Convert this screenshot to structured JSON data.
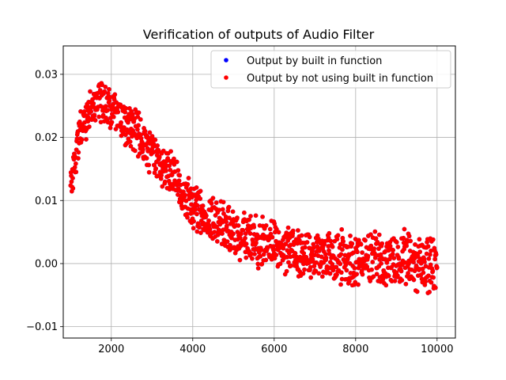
{
  "chart_data": {
    "type": "scatter",
    "title": "Verification of outputs of Audio Filter",
    "xlabel": "",
    "ylabel": "",
    "xlim": [
      820,
      10450
    ],
    "ylim": [
      -0.0118,
      0.0345
    ],
    "xticks": [
      2000,
      4000,
      6000,
      8000,
      10000
    ],
    "yticks": [
      -0.01,
      0.0,
      0.01,
      0.02,
      0.03
    ],
    "xtick_labels": [
      "2000",
      "4000",
      "6000",
      "8000",
      "10000"
    ],
    "ytick_labels": [
      "−0.01",
      "0.00",
      "0.01",
      "0.02",
      "0.03"
    ],
    "grid": true,
    "legend_position": "top-right",
    "series": [
      {
        "name": "Output by built in function",
        "color": "#0000ff",
        "marker": "circle",
        "trend": {
          "x": [
            1000,
            1100,
            1200,
            1300,
            1400,
            1500,
            1600,
            1700,
            1800,
            1900,
            2000,
            2200,
            2400,
            2600,
            2800,
            3000,
            3200,
            3400,
            3600,
            3800,
            4000,
            4200,
            4400,
            4600,
            4800,
            5000,
            5200,
            5400,
            5600,
            5800,
            6000,
            6200,
            6400,
            6600,
            6800,
            7000,
            7200,
            7400,
            7600,
            7800,
            8000,
            8200,
            8400,
            8600,
            8800,
            9000,
            9200,
            9400,
            9600,
            9800,
            10000
          ],
          "y": [
            0.012,
            0.016,
            0.02,
            0.022,
            0.023,
            0.024,
            0.025,
            0.0255,
            0.026,
            0.025,
            0.024,
            0.023,
            0.022,
            0.021,
            0.019,
            0.017,
            0.016,
            0.015,
            0.013,
            0.011,
            0.009,
            0.008,
            0.0075,
            0.007,
            0.006,
            0.005,
            0.0045,
            0.004,
            0.0035,
            0.003,
            0.003,
            0.0025,
            0.0025,
            0.002,
            0.0015,
            0.0015,
            0.0015,
            0.001,
            0.001,
            0.001,
            0.0005,
            0.0005,
            0.0005,
            0.0005,
            0.0,
            0.0,
            0.0005,
            0.0005,
            0.0,
            0.0,
            -0.001
          ]
        },
        "amplitude": {
          "x": [
            1000,
            1200,
            1500,
            1800,
            2000,
            2500,
            3000,
            3500,
            4000,
            4500,
            5000,
            6000,
            7000,
            8000,
            9000,
            10000
          ],
          "y": [
            0.003,
            0.004,
            0.004,
            0.005,
            0.004,
            0.004,
            0.004,
            0.004,
            0.004,
            0.004,
            0.0045,
            0.0045,
            0.0045,
            0.005,
            0.005,
            0.0055
          ]
        }
      },
      {
        "name": "Output by not using built in function",
        "color": "#ff0000",
        "marker": "circle"
      }
    ]
  }
}
